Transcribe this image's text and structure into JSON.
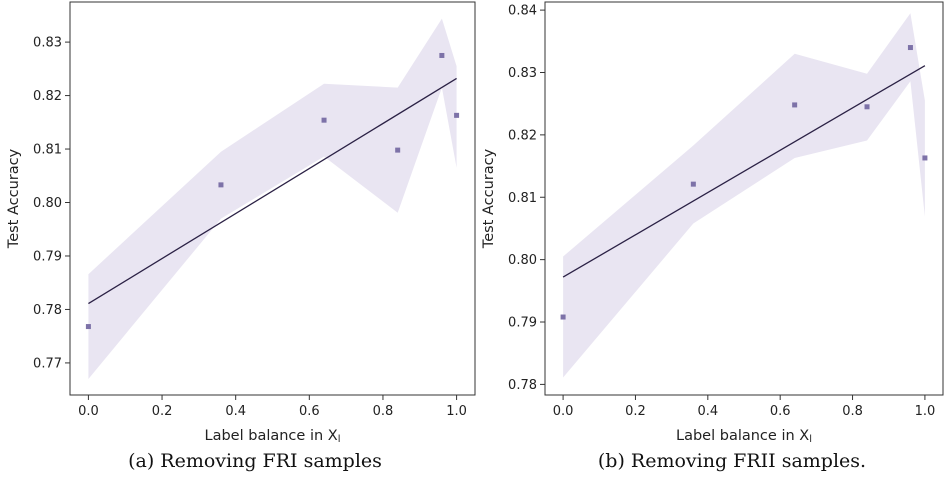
{
  "chart_data": [
    {
      "type": "scatter",
      "caption": "(a) Removing FRI samples",
      "xlabel": "Label balance in X",
      "xlabel_sub": "l",
      "ylabel": "Test Accuracy",
      "xlim": [
        -0.05,
        1.05
      ],
      "ylim": [
        0.764,
        0.8375
      ],
      "xticks": [
        0.0,
        0.2,
        0.4,
        0.6,
        0.8,
        1.0
      ],
      "xtick_labels": [
        "0.0",
        "0.2",
        "0.4",
        "0.6",
        "0.8",
        "1.0"
      ],
      "yticks": [
        0.77,
        0.78,
        0.79,
        0.8,
        0.81,
        0.82,
        0.83
      ],
      "ytick_labels": [
        "0.77",
        "0.78",
        "0.79",
        "0.80",
        "0.81",
        "0.82",
        "0.83"
      ],
      "points": [
        {
          "x": 0.0,
          "y": 0.7768
        },
        {
          "x": 0.36,
          "y": 0.8033
        },
        {
          "x": 0.64,
          "y": 0.8154
        },
        {
          "x": 0.84,
          "y": 0.8098
        },
        {
          "x": 0.96,
          "y": 0.8275
        },
        {
          "x": 1.0,
          "y": 0.8163
        }
      ],
      "fit_line": {
        "x": [
          0.0,
          1.0
        ],
        "y": [
          0.7811,
          0.8232
        ]
      },
      "band_upper": [
        [
          0.0,
          0.7866
        ],
        [
          0.36,
          0.8095
        ],
        [
          0.64,
          0.8222
        ],
        [
          0.84,
          0.8215
        ],
        [
          0.96,
          0.8344
        ],
        [
          1.0,
          0.8255
        ]
      ],
      "band_lower": [
        [
          1.0,
          0.8065
        ],
        [
          0.96,
          0.8215
        ],
        [
          0.84,
          0.7981
        ],
        [
          0.64,
          0.8086
        ],
        [
          0.36,
          0.797
        ],
        [
          0.0,
          0.767
        ]
      ],
      "colors": {
        "point": "#7d72a8",
        "line": "#2b2145",
        "band": "#e9e5f2"
      }
    },
    {
      "type": "scatter",
      "caption": "(b) Removing FRII samples.",
      "xlabel": "Label balance in X",
      "xlabel_sub": "l",
      "ylabel": "Test Accuracy",
      "xlim": [
        -0.05,
        1.05
      ],
      "ylim": [
        0.7783,
        0.8413
      ],
      "xticks": [
        0.0,
        0.2,
        0.4,
        0.6,
        0.8,
        1.0
      ],
      "xtick_labels": [
        "0.0",
        "0.2",
        "0.4",
        "0.6",
        "0.8",
        "1.0"
      ],
      "yticks": [
        0.78,
        0.79,
        0.8,
        0.81,
        0.82,
        0.83,
        0.84
      ],
      "ytick_labels": [
        "0.78",
        "0.79",
        "0.80",
        "0.81",
        "0.82",
        "0.83",
        "0.84"
      ],
      "points": [
        {
          "x": 0.0,
          "y": 0.7908
        },
        {
          "x": 0.36,
          "y": 0.8121
        },
        {
          "x": 0.64,
          "y": 0.8248
        },
        {
          "x": 0.84,
          "y": 0.8245
        },
        {
          "x": 0.96,
          "y": 0.834
        },
        {
          "x": 1.0,
          "y": 0.8163
        }
      ],
      "fit_line": {
        "x": [
          0.0,
          1.0
        ],
        "y": [
          0.7972,
          0.8311
        ]
      },
      "band_upper": [
        [
          0.0,
          0.8005
        ],
        [
          0.36,
          0.8183
        ],
        [
          0.64,
          0.833
        ],
        [
          0.84,
          0.8298
        ],
        [
          0.96,
          0.8395
        ],
        [
          1.0,
          0.8255
        ]
      ],
      "band_lower": [
        [
          1.0,
          0.8069
        ],
        [
          0.96,
          0.8286
        ],
        [
          0.84,
          0.8191
        ],
        [
          0.64,
          0.8163
        ],
        [
          0.36,
          0.8058
        ],
        [
          0.0,
          0.7811
        ]
      ],
      "colors": {
        "point": "#7d72a8",
        "line": "#2b2145",
        "band": "#e9e5f2"
      }
    }
  ]
}
